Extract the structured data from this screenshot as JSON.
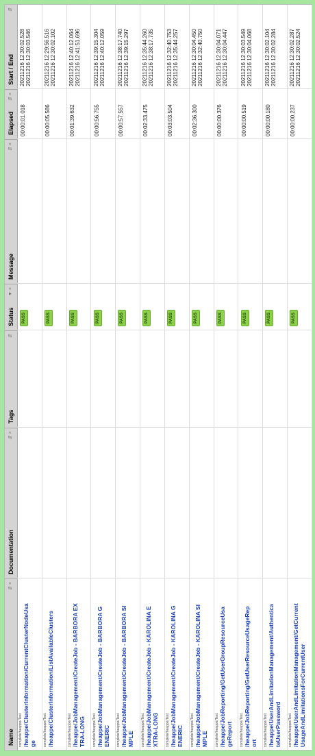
{
  "columns": {
    "name": "Name",
    "documentation": "Documentation",
    "tags": "Tags",
    "status": "Status",
    "message": "Message",
    "elapsed": "Elapsed",
    "start_end": "Start / End"
  },
  "controls": {
    "sort": "⬍",
    "close": "×",
    "sort_active": "⬎"
  },
  "rows": [
    {
      "suite": "complete/heappe/Test.",
      "name": "/heappe/ClusterInformation/CurrentClusterNodeUsage",
      "status": "PASS",
      "elapsed": "00:00:01.018",
      "start": "20211216 12:30:02.528",
      "end": "20211216 12:30:03.546"
    },
    {
      "suite": "complete/heappe/Test.",
      "name": "/heappe/ClusterInformation/ListAvailableClusters",
      "status": "PASS",
      "elapsed": "00:00:05.586",
      "start": "20211216 12:29:56.516",
      "end": "20211216 12:30:02.102"
    },
    {
      "suite": "complete/heappe/Test.",
      "name": "/heappe/JobManagement/CreateJob - BARBORA EXTRA-LONG",
      "status": "PASS",
      "elapsed": "00:01:39.632",
      "start": "20211216 12:40:12.064",
      "end": "20211216 12:41:51.696"
    },
    {
      "suite": "complete/heappe/Test.",
      "name": "/heappe/JobManagement/CreateJob - BARBORA GENERIC",
      "status": "PASS",
      "elapsed": "00:00:56.755",
      "start": "20211216 12:39:15.304",
      "end": "20211216 12:40:12.059"
    },
    {
      "suite": "complete/heappe/Test.",
      "name": "/heappe/JobManagement/CreateJob - BARBORA SIMPLE",
      "status": "PASS",
      "elapsed": "00:00:57.557",
      "start": "20211216 12:38:17.740",
      "end": "20211216 12:39:15.297"
    },
    {
      "suite": "complete/heappe/Test.",
      "name": "/heappe/JobManagement/CreateJob - KAROLINA EXTRA-LONG",
      "status": "PASS",
      "elapsed": "00:02:33.475",
      "start": "20211216 12:35:44.260",
      "end": "20211216 12:38:17.735"
    },
    {
      "suite": "complete/heappe/Test.",
      "name": "/heappe/JobManagement/CreateJob - KAROLINA GENERIC",
      "status": "PASS",
      "elapsed": "00:03:03.504",
      "start": "20211216 12:32:40.753",
      "end": "20211216 12:35:44.257"
    },
    {
      "suite": "complete/heappe/Test.",
      "name": "/heappe/JobManagement/CreateJob - KAROLINA SIMPLE",
      "status": "PASS",
      "elapsed": "00:02:36.300",
      "start": "20211216 12:30:04.450",
      "end": "20211216 12:32:40.750"
    },
    {
      "suite": "complete/heappe/Test.",
      "name": "/heappe/JobReporting/GetUserGroupResourceUsageReport",
      "status": "PASS",
      "elapsed": "00:00:00.376",
      "start": "20211216 12:30:04.071",
      "end": "20211216 12:30:04.447"
    },
    {
      "suite": "complete/heappe/Test.",
      "name": "/heappe/JobReporting/GetUserResourceUsageReport",
      "status": "PASS",
      "elapsed": "00:00:00.519",
      "start": "20211216 12:30:03.549",
      "end": "20211216 12:30:04.068"
    },
    {
      "suite": "complete/heappe/Test.",
      "name": "/heappe/UserAndLimitationManagement/AuthenticateUserPassword",
      "status": "PASS",
      "elapsed": "00:00:00.180",
      "start": "20211216 12:30:02.104",
      "end": "20211216 12:30:02.284"
    },
    {
      "suite": "complete/heappe/Test.",
      "name": "/heappe/UserAndLimitationManagement/GetCurrentUsageAndLimitationsForCurrentUser",
      "status": "PASS",
      "elapsed": "00:00:00.237",
      "start": "20211216 12:30:02.287",
      "end": "20211216 12:30:02.524"
    }
  ]
}
